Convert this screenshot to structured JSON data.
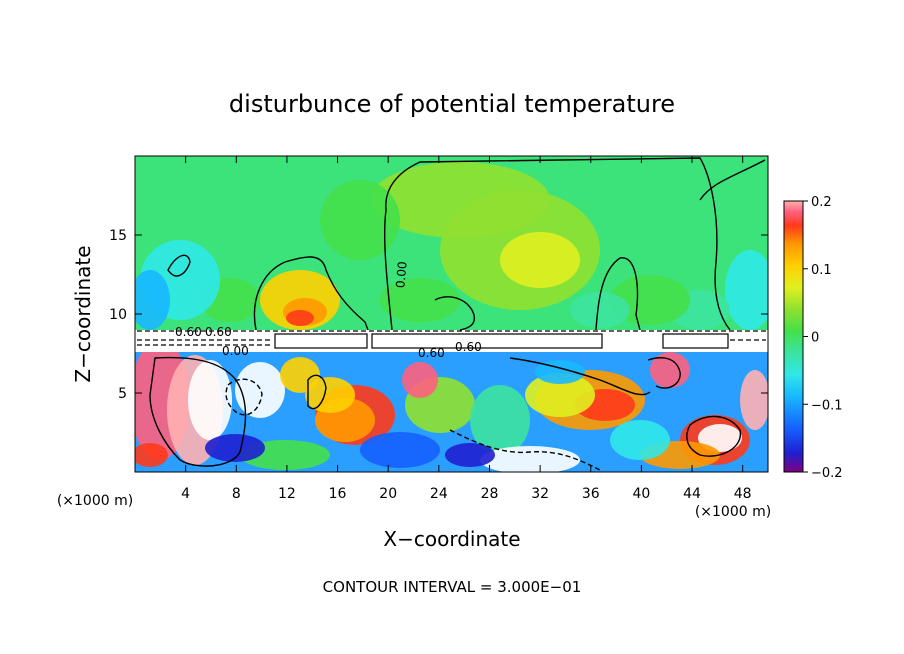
{
  "chart_data": {
    "type": "heatmap",
    "title": "disturbunce of potential temperature",
    "xlabel": "X−coordinate",
    "ylabel": "Z−coordinate",
    "x_unit_label": "(×1000 m)",
    "x_unit_label_right": "(×1000 m)",
    "xlim": [
      0,
      50
    ],
    "ylim": [
      0,
      20
    ],
    "x_ticks": [
      4,
      8,
      12,
      16,
      20,
      24,
      28,
      32,
      36,
      40,
      44,
      48
    ],
    "y_ticks": [
      5,
      10,
      15
    ],
    "colorbar": {
      "min": -0.2,
      "max": 0.2,
      "tick_values": [
        0.2,
        0.1,
        0,
        -0.1,
        -0.2
      ],
      "tick_labels": [
        "0.2",
        "0.1",
        "0",
        "−0.1",
        "−0.2"
      ]
    },
    "footer": "CONTOUR INTERVAL = 3.000E−01",
    "contour_labels": [
      {
        "text": "0.60",
        "x": 6,
        "y": 8.9
      },
      {
        "text": "0.60",
        "x": 8,
        "y": 8.9
      },
      {
        "text": "0.00",
        "x": 6,
        "y": 7.6
      },
      {
        "text": "0.60",
        "x": 24,
        "y": 7.6
      },
      {
        "text": "0.60",
        "x": 26,
        "y": 8.0
      },
      {
        "text": "0.00",
        "x": 16,
        "y": 11.3
      }
    ]
  },
  "colors": {
    "scale": [
      "#800080",
      "#1f1fd0",
      "#1560ff",
      "#18b8ff",
      "#30e8e8",
      "#3ce3a0",
      "#44e04a",
      "#90e030",
      "#e0f020",
      "#ffd000",
      "#ff9900",
      "#ff3a1a",
      "#ff6080",
      "#ffb0b0"
    ],
    "background": "#ffffff",
    "ink": "#000000"
  }
}
